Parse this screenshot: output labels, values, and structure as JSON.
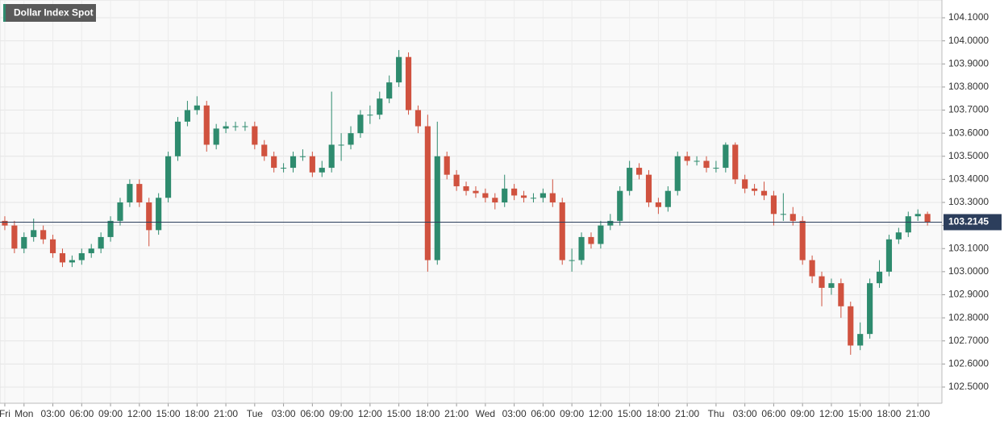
{
  "chart_data": {
    "type": "candlestick",
    "title": "Dollar Index Spot",
    "up_color": "#2e8b6e",
    "down_color": "#d0523f",
    "grid": true,
    "x": [
      -2,
      -1,
      0,
      1,
      2,
      3,
      4,
      5,
      6,
      7,
      8,
      9,
      10,
      11,
      12,
      13,
      14,
      15,
      16,
      17,
      18,
      19,
      20,
      21,
      22,
      23,
      24,
      25,
      26,
      27,
      28,
      29,
      30,
      31,
      32,
      33,
      34,
      35,
      36,
      37,
      38,
      39,
      40,
      41,
      42,
      43,
      44,
      45,
      46,
      47,
      48,
      49,
      50,
      51,
      52,
      53,
      54,
      55,
      56,
      57,
      58,
      59,
      60,
      61,
      62,
      63,
      64,
      65,
      66,
      67,
      68,
      69,
      70,
      71,
      72,
      73,
      74,
      75,
      76,
      77,
      78,
      79,
      80,
      81,
      82,
      83,
      84,
      85,
      86,
      87,
      88,
      89,
      90,
      91,
      92,
      93,
      94
    ],
    "open": [
      103.22,
      103.2,
      103.1,
      103.15,
      103.18,
      103.14,
      103.08,
      103.04,
      103.05,
      103.08,
      103.1,
      103.15,
      103.22,
      103.3,
      103.38,
      103.3,
      103.18,
      103.32,
      103.5,
      103.65,
      103.7,
      103.72,
      103.55,
      103.62,
      103.63,
      103.63,
      103.63,
      103.55,
      103.5,
      103.45,
      103.45,
      103.5,
      103.5,
      103.43,
      103.45,
      103.55,
      103.55,
      103.6,
      103.68,
      103.68,
      103.75,
      103.82,
      103.93,
      103.7,
      103.63,
      103.05,
      103.5,
      103.42,
      103.37,
      103.35,
      103.34,
      103.32,
      103.3,
      103.36,
      103.33,
      103.32,
      103.32,
      103.34,
      103.3,
      103.05,
      103.05,
      103.15,
      103.12,
      103.2,
      103.22,
      103.35,
      103.45,
      103.42,
      103.3,
      103.28,
      103.35,
      103.5,
      103.48,
      103.48,
      103.45,
      103.45,
      103.55,
      103.4,
      103.36,
      103.35,
      103.33,
      103.25,
      103.25,
      103.22,
      103.05,
      102.98,
      102.93,
      102.95,
      102.85,
      102.68,
      102.73,
      102.95,
      103.0,
      103.14,
      103.17,
      103.24,
      103.25
    ],
    "high": [
      103.24,
      103.22,
      103.17,
      103.23,
      103.2,
      103.16,
      103.1,
      103.07,
      103.1,
      103.12,
      103.17,
      103.24,
      103.32,
      103.4,
      103.4,
      103.32,
      103.34,
      103.52,
      103.67,
      103.74,
      103.76,
      103.74,
      103.64,
      103.65,
      103.65,
      103.65,
      103.65,
      103.57,
      103.52,
      103.47,
      103.52,
      103.53,
      103.52,
      103.48,
      103.78,
      103.6,
      103.63,
      103.7,
      103.72,
      103.78,
      103.85,
      103.96,
      103.95,
      103.72,
      103.68,
      103.65,
      103.52,
      103.44,
      103.39,
      103.37,
      103.36,
      103.34,
      103.42,
      103.38,
      103.35,
      103.34,
      103.36,
      103.4,
      103.32,
      103.1,
      103.17,
      103.17,
      103.22,
      103.25,
      103.37,
      103.48,
      103.47,
      103.44,
      103.32,
      103.37,
      103.52,
      103.52,
      103.5,
      103.5,
      103.48,
      103.56,
      103.56,
      103.42,
      103.38,
      103.39,
      103.35,
      103.34,
      103.28,
      103.24,
      103.07,
      103.0,
      102.97,
      102.97,
      102.87,
      102.78,
      102.97,
      103.05,
      103.16,
      103.19,
      103.26,
      103.27,
      103.26
    ],
    "low": [
      103.18,
      103.08,
      103.08,
      103.13,
      103.12,
      103.06,
      103.02,
      103.02,
      103.03,
      103.06,
      103.08,
      103.13,
      103.2,
      103.28,
      103.28,
      103.11,
      103.16,
      103.3,
      103.48,
      103.63,
      103.68,
      103.52,
      103.53,
      103.6,
      103.61,
      103.61,
      103.53,
      103.48,
      103.43,
      103.43,
      103.43,
      103.48,
      103.41,
      103.41,
      103.43,
      103.48,
      103.53,
      103.58,
      103.64,
      103.66,
      103.73,
      103.8,
      103.68,
      103.6,
      103.0,
      103.03,
      103.4,
      103.35,
      103.33,
      103.32,
      103.3,
      103.27,
      103.28,
      103.31,
      103.3,
      103.3,
      103.3,
      103.28,
      103.03,
      103.0,
      103.03,
      103.1,
      103.1,
      103.18,
      103.2,
      103.33,
      103.4,
      103.28,
      103.25,
      103.26,
      103.33,
      103.46,
      103.46,
      103.43,
      103.43,
      103.43,
      103.38,
      103.34,
      103.33,
      103.31,
      103.2,
      103.22,
      103.2,
      103.03,
      102.95,
      102.85,
      102.9,
      102.8,
      102.64,
      102.66,
      102.71,
      102.93,
      102.98,
      103.12,
      103.15,
      103.22,
      103.2
    ],
    "close": [
      103.2,
      103.1,
      103.15,
      103.18,
      103.14,
      103.08,
      103.04,
      103.05,
      103.08,
      103.1,
      103.15,
      103.22,
      103.3,
      103.38,
      103.3,
      103.18,
      103.32,
      103.5,
      103.65,
      103.7,
      103.72,
      103.55,
      103.62,
      103.63,
      103.63,
      103.63,
      103.55,
      103.5,
      103.45,
      103.45,
      103.5,
      103.5,
      103.43,
      103.45,
      103.55,
      103.55,
      103.6,
      103.68,
      103.68,
      103.75,
      103.82,
      103.93,
      103.7,
      103.63,
      103.05,
      103.5,
      103.42,
      103.37,
      103.35,
      103.34,
      103.32,
      103.3,
      103.36,
      103.33,
      103.32,
      103.32,
      103.34,
      103.3,
      103.05,
      103.05,
      103.15,
      103.12,
      103.2,
      103.22,
      103.35,
      103.45,
      103.42,
      103.3,
      103.28,
      103.35,
      103.5,
      103.48,
      103.48,
      103.45,
      103.45,
      103.55,
      103.4,
      103.36,
      103.35,
      103.33,
      103.25,
      103.25,
      103.22,
      103.05,
      102.98,
      102.93,
      102.95,
      102.85,
      102.68,
      102.73,
      102.95,
      103.0,
      103.14,
      103.17,
      103.24,
      103.25,
      103.2145
    ],
    "last_price": 103.2145,
    "xlim": [
      -2.5,
      95.5
    ],
    "xticks": [
      {
        "value": -2,
        "label": "Fri"
      },
      {
        "value": 0,
        "label": "Mon"
      },
      {
        "value": 3,
        "label": "03:00"
      },
      {
        "value": 6,
        "label": "06:00"
      },
      {
        "value": 9,
        "label": "09:00"
      },
      {
        "value": 12,
        "label": "12:00"
      },
      {
        "value": 15,
        "label": "15:00"
      },
      {
        "value": 18,
        "label": "18:00"
      },
      {
        "value": 21,
        "label": "21:00"
      },
      {
        "value": 24,
        "label": "Tue"
      },
      {
        "value": 27,
        "label": "03:00"
      },
      {
        "value": 30,
        "label": "06:00"
      },
      {
        "value": 33,
        "label": "09:00"
      },
      {
        "value": 36,
        "label": "12:00"
      },
      {
        "value": 39,
        "label": "15:00"
      },
      {
        "value": 42,
        "label": "18:00"
      },
      {
        "value": 45,
        "label": "21:00"
      },
      {
        "value": 48,
        "label": "Wed"
      },
      {
        "value": 51,
        "label": "03:00"
      },
      {
        "value": 54,
        "label": "06:00"
      },
      {
        "value": 57,
        "label": "09:00"
      },
      {
        "value": 60,
        "label": "12:00"
      },
      {
        "value": 63,
        "label": "15:00"
      },
      {
        "value": 66,
        "label": "18:00"
      },
      {
        "value": 69,
        "label": "21:00"
      },
      {
        "value": 72,
        "label": "Thu"
      },
      {
        "value": 75,
        "label": "03:00"
      },
      {
        "value": 78,
        "label": "06:00"
      },
      {
        "value": 81,
        "label": "09:00"
      },
      {
        "value": 84,
        "label": "12:00"
      },
      {
        "value": 87,
        "label": "15:00"
      },
      {
        "value": 90,
        "label": "18:00"
      },
      {
        "value": 93,
        "label": "21:00"
      }
    ],
    "ylim": [
      102.43,
      104.177
    ],
    "yticks": [
      {
        "value": 102.5,
        "label": "102.5000"
      },
      {
        "value": 102.6,
        "label": "102.6000"
      },
      {
        "value": 102.7,
        "label": "102.7000"
      },
      {
        "value": 102.8,
        "label": "102.8000"
      },
      {
        "value": 102.9,
        "label": "102.9000"
      },
      {
        "value": 103.0,
        "label": "103.0000"
      },
      {
        "value": 103.1,
        "label": "103.1000"
      },
      {
        "value": 103.2,
        "label": "103.2000"
      },
      {
        "value": 103.3,
        "label": "103.3000"
      },
      {
        "value": 103.4,
        "label": "103.4000"
      },
      {
        "value": 103.5,
        "label": "103.5000"
      },
      {
        "value": 103.6,
        "label": "103.6000"
      },
      {
        "value": 103.7,
        "label": "103.7000"
      },
      {
        "value": 103.8,
        "label": "103.8000"
      },
      {
        "value": 103.9,
        "label": "103.9000"
      },
      {
        "value": 104.0,
        "label": "104.0000"
      },
      {
        "value": 104.1,
        "label": "104.1000"
      }
    ]
  }
}
